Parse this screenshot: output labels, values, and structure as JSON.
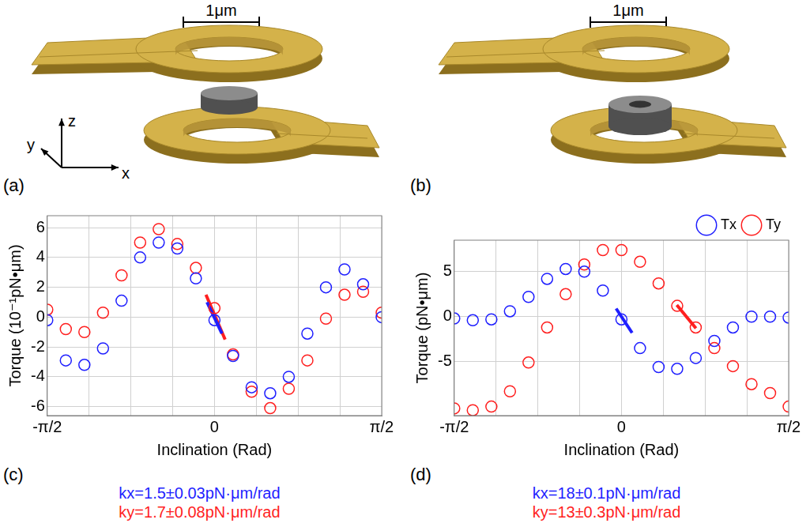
{
  "figure": {
    "panel_letters": [
      "(a)",
      "(b)",
      "(c)",
      "(d)"
    ],
    "scale_bar": "1μm",
    "axis_labels": {
      "x": "x",
      "y": "y",
      "z": "z"
    }
  },
  "chart_data": [
    {
      "type": "scatter",
      "x_label": "Inclination (Rad)",
      "y_label": "Torque (10⁻¹pN•μm)",
      "x": [
        -1.5708,
        -1.3963,
        -1.2217,
        -1.0472,
        -0.8727,
        -0.6981,
        -0.5236,
        -0.3491,
        -0.1745,
        0,
        0.1745,
        0.3491,
        0.5236,
        0.6981,
        0.8727,
        1.0472,
        1.2217,
        1.3963,
        1.5708
      ],
      "series": [
        {
          "color": "#1f1fff",
          "marker": "circle",
          "values": [
            -0.2,
            -2.9,
            -3.2,
            -2.1,
            1.1,
            4.0,
            5.0,
            4.6,
            2.6,
            -0.2,
            -2.6,
            -4.7,
            -5.1,
            -4.0,
            -1.1,
            2.0,
            3.2,
            2.2,
            0.0
          ]
        },
        {
          "color": "#ff1f1f",
          "marker": "circle",
          "values": [
            0.5,
            -0.8,
            -1.0,
            0.3,
            2.8,
            5.0,
            5.9,
            4.9,
            3.3,
            0.6,
            -2.5,
            -5.0,
            -6.1,
            -4.8,
            -2.9,
            -0.1,
            1.5,
            1.7,
            0.3
          ]
        }
      ],
      "fits": [
        {
          "color": "#1f1fff",
          "x": [
            -0.07,
            0.07
          ],
          "values": [
            1.0,
            -1.1
          ]
        },
        {
          "color": "#ff1f1f",
          "x": [
            -0.08,
            0.1
          ],
          "values": [
            1.5,
            -1.5
          ]
        }
      ],
      "xlim": [
        -1.5708,
        1.5708
      ],
      "xticks": [
        {
          "value": -1.5708,
          "label": "-π/2"
        },
        {
          "value": -1.1781,
          "label": null
        },
        {
          "value": -0.7854,
          "label": null
        },
        {
          "value": -0.3927,
          "label": null
        },
        0,
        {
          "value": 0.3927,
          "label": null
        },
        {
          "value": 0.7854,
          "label": null
        },
        {
          "value": 1.1781,
          "label": null
        },
        {
          "value": 1.5708,
          "label": "π/2"
        }
      ],
      "ylim": [
        -6.6,
        6.8
      ],
      "yticks": [
        -6,
        -4,
        -2,
        0,
        2,
        4,
        6
      ],
      "grid": true,
      "annotations": [
        {
          "text": "kx=1.5±0.03pN·μm/rad",
          "color": "#1f1fff"
        },
        {
          "text": "ky=1.7±0.08pN·μm/rad",
          "color": "#ff1f1f"
        }
      ]
    },
    {
      "type": "scatter",
      "x_label": "Inclination (Rad)",
      "y_label": "Torque (pN•μm)",
      "x": [
        -1.5708,
        -1.3963,
        -1.2217,
        -1.0472,
        -0.8727,
        -0.6981,
        -0.5236,
        -0.3491,
        -0.1745,
        0,
        0.1745,
        0.3491,
        0.5236,
        0.6981,
        0.8727,
        1.0472,
        1.2217,
        1.3963,
        1.5708
      ],
      "series": [
        {
          "name": "Tx",
          "color": "#1f1fff",
          "marker": "circle",
          "values": [
            -0.2,
            -0.4,
            -0.3,
            0.6,
            2.2,
            4.2,
            5.3,
            5.0,
            2.9,
            -0.3,
            -3.5,
            -5.6,
            -5.8,
            -4.6,
            -2.7,
            -1.2,
            0.0,
            0.0,
            -0.1
          ]
        },
        {
          "name": "Ty",
          "color": "#ff1f1f",
          "marker": "circle",
          "values": [
            -10.2,
            -10.4,
            -10.0,
            -8.3,
            -5.1,
            -1.2,
            2.5,
            5.8,
            7.4,
            7.4,
            6.1,
            3.7,
            1.2,
            -1.2,
            -3.5,
            -5.5,
            -7.5,
            -8.5,
            -10.0
          ]
        }
      ],
      "fits": [
        {
          "color": "#1f1fff",
          "x": [
            -0.05,
            0.1
          ],
          "values": [
            0.9,
            -1.8
          ]
        },
        {
          "color": "#ff1f1f",
          "x": [
            0.52,
            0.7
          ],
          "values": [
            1.3,
            -1.3
          ]
        }
      ],
      "xlim": [
        -1.5708,
        1.5708
      ],
      "xticks": [
        {
          "value": -1.5708,
          "label": "-π/2"
        },
        {
          "value": -1.1781,
          "label": null
        },
        {
          "value": -0.7854,
          "label": null
        },
        {
          "value": -0.3927,
          "label": null
        },
        0,
        {
          "value": 0.3927,
          "label": null
        },
        {
          "value": 0.7854,
          "label": null
        },
        {
          "value": 1.1781,
          "label": null
        },
        {
          "value": 1.5708,
          "label": "π/2"
        }
      ],
      "ylim": [
        -11,
        8.5
      ],
      "yticks": [
        -5,
        0,
        5
      ],
      "grid": true,
      "legend": "top right",
      "annotations": [
        {
          "text": "kx=18±0.1pN·μm/rad",
          "color": "#1f1fff"
        },
        {
          "text": "ky=13±0.3pN·μm/rad",
          "color": "#ff1f1f"
        }
      ]
    }
  ]
}
